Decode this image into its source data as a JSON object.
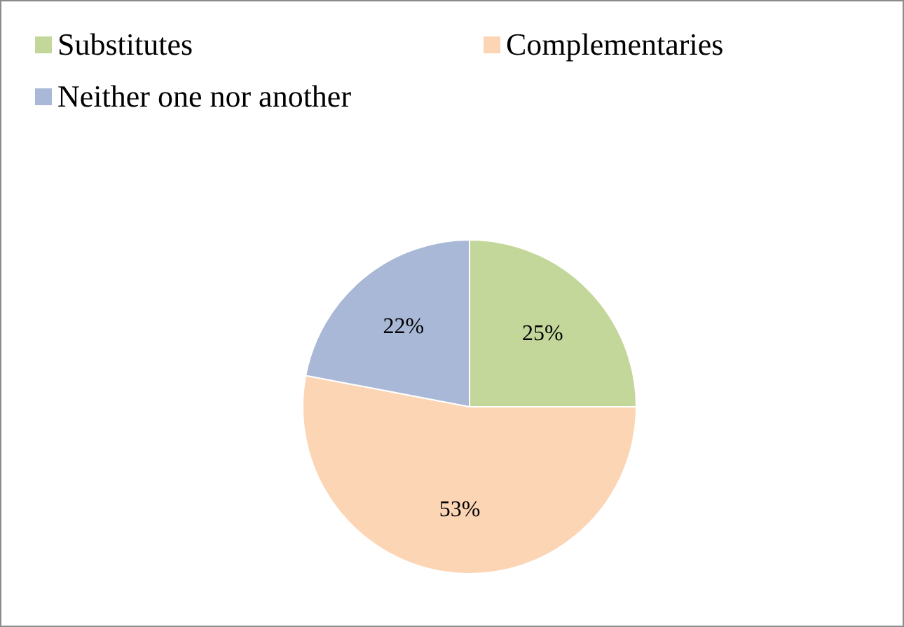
{
  "chart_data": {
    "type": "pie",
    "categories": [
      "Substitutes",
      "Complementaries",
      "Neither one nor another"
    ],
    "values": [
      25,
      53,
      22
    ],
    "colors": [
      "#c4d79b",
      "#fcd5b5",
      "#a9b8d6"
    ],
    "value_labels": [
      "25%",
      "53%",
      "22%"
    ],
    "legend": "top left"
  }
}
